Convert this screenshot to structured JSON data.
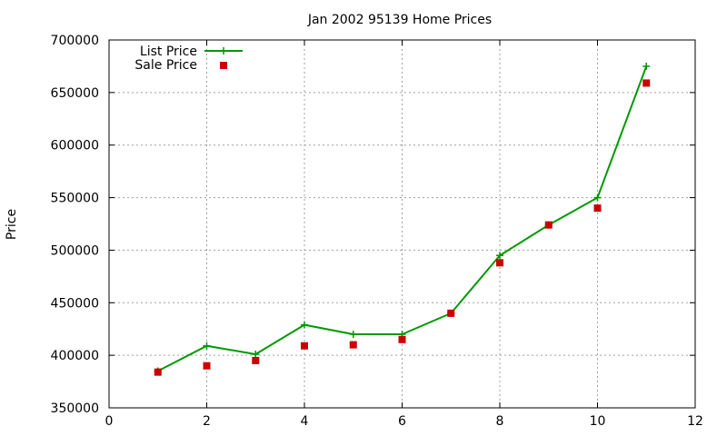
{
  "chart_data": {
    "type": "line",
    "title": "Jan 2002 95139 Home Prices",
    "xlabel": "",
    "ylabel": "Price",
    "xlim": [
      0,
      12
    ],
    "ylim": [
      350000,
      700000
    ],
    "x_ticks": [
      0,
      2,
      4,
      6,
      8,
      10,
      12
    ],
    "y_ticks": [
      350000,
      400000,
      450000,
      500000,
      550000,
      600000,
      650000,
      700000
    ],
    "grid": true,
    "legend_position": "top-left",
    "series": [
      {
        "name": "List Price",
        "style": "line-with-plus-markers",
        "color": "#009900",
        "x": [
          1,
          2,
          3,
          4,
          5,
          6,
          7,
          8,
          9,
          10,
          11
        ],
        "y": [
          385000,
          409000,
          401000,
          429000,
          420000,
          420000,
          440000,
          495000,
          524000,
          550000,
          675000
        ]
      },
      {
        "name": "Sale Price",
        "style": "square-markers",
        "color": "#cc0000",
        "x": [
          1,
          2,
          3,
          4,
          5,
          6,
          7,
          8,
          9,
          10,
          11
        ],
        "y": [
          384000,
          390000,
          395000,
          409000,
          410000,
          415000,
          440000,
          488000,
          524000,
          540000,
          659000
        ]
      }
    ]
  }
}
